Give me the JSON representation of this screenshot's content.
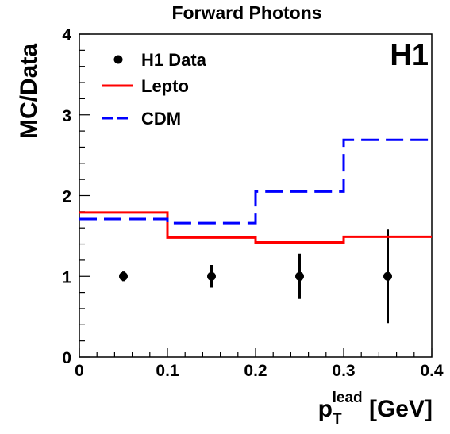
{
  "chart_data": {
    "type": "line",
    "title": "Forward Photons",
    "experiment_label": "H1",
    "xlabel": {
      "main": "p",
      "sub": "T",
      "sup": "lead",
      "unit": " [GeV]"
    },
    "ylabel": "MC/Data",
    "xlim": [
      0,
      0.4
    ],
    "ylim": [
      0,
      4
    ],
    "x_ticks": [
      "0",
      "0.1",
      "0.2",
      "0.3",
      "0.4"
    ],
    "y_ticks": [
      "0",
      "1",
      "2",
      "3",
      "4"
    ],
    "grid": false,
    "legend_position": "top-left",
    "series": [
      {
        "name": "H1 Data",
        "style": "points",
        "color": "#000000",
        "points": [
          {
            "x": 0.05,
            "y": 1.0,
            "err": 0.06
          },
          {
            "x": 0.15,
            "y": 1.0,
            "err": 0.14
          },
          {
            "x": 0.25,
            "y": 1.0,
            "err": 0.28
          },
          {
            "x": 0.35,
            "y": 1.0,
            "err": 0.58
          }
        ]
      },
      {
        "name": "Lepto",
        "style": "solid-step",
        "color": "#ff0000",
        "bins": [
          {
            "x0": 0.0,
            "x1": 0.1,
            "y": 1.79
          },
          {
            "x0": 0.1,
            "x1": 0.2,
            "y": 1.48
          },
          {
            "x0": 0.2,
            "x1": 0.3,
            "y": 1.42
          },
          {
            "x0": 0.3,
            "x1": 0.4,
            "y": 1.49
          }
        ]
      },
      {
        "name": "CDM",
        "style": "dashed-step",
        "color": "#0000ff",
        "bins": [
          {
            "x0": 0.0,
            "x1": 0.1,
            "y": 1.71
          },
          {
            "x0": 0.1,
            "x1": 0.2,
            "y": 1.66
          },
          {
            "x0": 0.2,
            "x1": 0.3,
            "y": 2.05
          },
          {
            "x0": 0.3,
            "x1": 0.4,
            "y": 2.69
          }
        ]
      }
    ]
  }
}
